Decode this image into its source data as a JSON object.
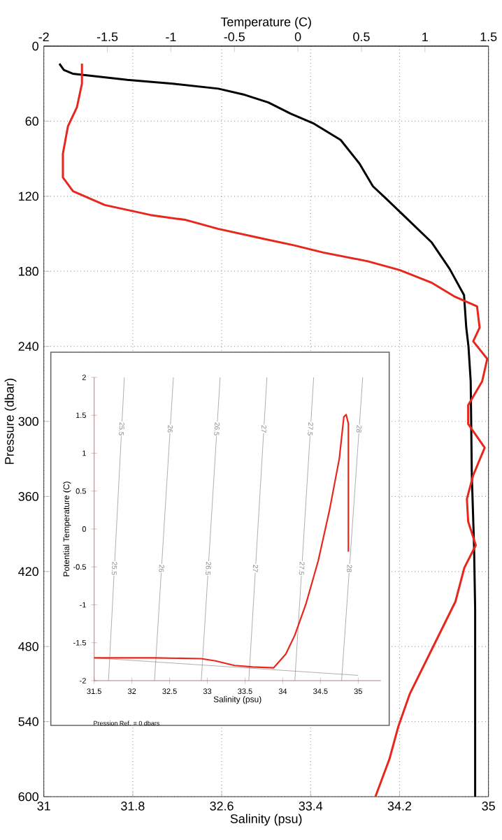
{
  "chart_data": [
    {
      "type": "line",
      "xlabel": "Salinity (psu)",
      "x2label": "Temperature (C)",
      "ylabel": "Pressure (dbar)",
      "xlim": [
        31,
        35
      ],
      "xticks": [
        31,
        31.8,
        32.6,
        33.4,
        34.2,
        35
      ],
      "x2lim": [
        -2,
        1.5
      ],
      "x2ticks": [
        -2,
        -1.5,
        -1,
        -0.5,
        0,
        0.5,
        1,
        1.5
      ],
      "ylim": [
        600,
        0
      ],
      "yticks": [
        0,
        60,
        120,
        180,
        240,
        300,
        360,
        420,
        480,
        540,
        600
      ],
      "grid": true,
      "series": [
        {
          "color": "#000000",
          "x": [
            31.14,
            31.18,
            31.26,
            31.75,
            32.16,
            32.57,
            32.81,
            33.02,
            33.22,
            33.43,
            33.67,
            33.84,
            33.96,
            34.08,
            34.28,
            34.49,
            34.65,
            34.78,
            34.8,
            34.82,
            34.84,
            34.85,
            34.87,
            34.88,
            34.88
          ],
          "values": [
            14,
            19,
            22,
            27,
            30,
            34,
            39,
            45,
            54,
            62,
            75,
            94,
            112,
            122,
            139,
            157,
            178,
            199,
            225,
            240,
            268,
            343,
            399,
            450,
            600
          ]
        },
        {
          "color": "#e8261c",
          "axis": "x2",
          "x": [
            -1.7,
            -1.7,
            -1.74,
            -1.81,
            -1.85,
            -1.85,
            -1.77,
            -1.52,
            -1.16,
            -0.88,
            -0.63,
            -0.27,
            -0.04,
            0.2,
            0.55,
            0.8,
            1.05,
            1.23,
            1.41,
            1.43,
            1.38,
            1.49,
            1.45,
            1.34,
            1.34,
            1.47,
            1.38,
            1.33,
            1.34,
            1.4,
            1.31,
            1.24,
            1.06,
            0.88,
            0.79,
            0.72,
            0.61
          ],
          "values": [
            14,
            30,
            49,
            64,
            86,
            105,
            116,
            127,
            135,
            139,
            146,
            154,
            159,
            165,
            172,
            179,
            189,
            200,
            208,
            225,
            236,
            250,
            268,
            287,
            302,
            321,
            343,
            362,
            380,
            399,
            417,
            444,
            481,
            518,
            544,
            570,
            600
          ]
        }
      ]
    },
    {
      "type": "line",
      "xlabel": "Salinity (psu)",
      "ylabel": "Potential Temperature (C)",
      "xlim": [
        31.5,
        35.3
      ],
      "xticks": [
        31.5,
        32,
        32.5,
        33,
        33.5,
        34,
        34.5,
        35
      ],
      "ylim": [
        -2,
        2
      ],
      "yticks": [
        -2,
        -1.5,
        -1,
        -0.5,
        0,
        0.5,
        1,
        1.5,
        2
      ],
      "annotations": [
        "Pression Ref. = 0 dbars"
      ],
      "series": [
        {
          "name": "25.5",
          "color": "#8c8c8c",
          "x": [
            31.69,
            31.9
          ],
          "values": [
            -2,
            2
          ]
        },
        {
          "name": "26",
          "color": "#8c8c8c",
          "x": [
            32.3,
            32.55
          ],
          "values": [
            -2,
            2
          ]
        },
        {
          "name": "26.5",
          "color": "#8c8c8c",
          "x": [
            32.92,
            33.17
          ],
          "values": [
            -2,
            2
          ]
        },
        {
          "name": "27",
          "color": "#8c8c8c",
          "x": [
            33.55,
            33.79
          ],
          "values": [
            -2,
            2
          ]
        },
        {
          "name": "27.5",
          "color": "#8c8c8c",
          "x": [
            34.16,
            34.41
          ],
          "values": [
            -2,
            2
          ]
        },
        {
          "name": "28",
          "color": "#8c8c8c",
          "x": [
            34.78,
            35.06
          ],
          "values": [
            -2,
            2
          ]
        },
        {
          "color": "#8c8c8c",
          "x": [
            31.5,
            35
          ],
          "values": [
            -1.7,
            -1.93
          ]
        },
        {
          "color": "#e8261c",
          "x": [
            31.5,
            32.3,
            32.92,
            33.11,
            33.36,
            33.6,
            33.88,
            34.04,
            34.16,
            34.31,
            34.47,
            34.62,
            34.75,
            34.81,
            34.84,
            34.87,
            34.87
          ],
          "values": [
            -1.7,
            -1.7,
            -1.71,
            -1.74,
            -1.8,
            -1.82,
            -1.83,
            -1.65,
            -1.4,
            -0.98,
            -0.42,
            0.25,
            0.93,
            1.48,
            1.51,
            1.39,
            -0.3
          ]
        }
      ]
    }
  ]
}
